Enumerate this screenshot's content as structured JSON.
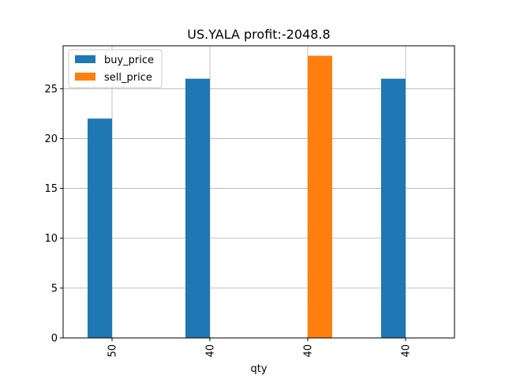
{
  "chart_data": {
    "type": "bar",
    "title": "US.YALA  profit:-2048.8",
    "xlabel": "qty",
    "ylabel": "",
    "categories": [
      "50",
      "40",
      "40",
      "40"
    ],
    "series": [
      {
        "name": "buy_price",
        "color": "#1f77b4",
        "values": [
          22.0,
          26.0,
          null,
          26.0
        ]
      },
      {
        "name": "sell_price",
        "color": "#ff7f0e",
        "values": [
          null,
          null,
          28.3,
          null
        ]
      }
    ],
    "ylim": [
      0,
      29.3
    ],
    "yticks": [
      0,
      5,
      10,
      15,
      20,
      25
    ],
    "grid": true,
    "legend_position": "top-left"
  }
}
